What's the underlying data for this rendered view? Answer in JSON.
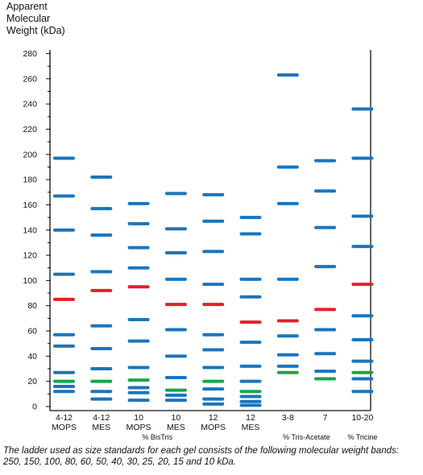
{
  "chart_data": {
    "type": "gel-ladder",
    "title_lines": [
      "Apparent",
      "Molecular",
      "Weight (kDa)"
    ],
    "ylim": [
      0,
      280
    ],
    "yticks": [
      0,
      20,
      40,
      60,
      80,
      100,
      120,
      140,
      160,
      180,
      200,
      220,
      240,
      260,
      280
    ],
    "lanes": [
      {
        "label1": "4-12",
        "label2": "MOPS",
        "blue": [
          197,
          167,
          140,
          105,
          57,
          48,
          27,
          16,
          12
        ],
        "red": [
          85
        ],
        "green": [
          20
        ]
      },
      {
        "label1": "4-12",
        "label2": "MES",
        "blue": [
          182,
          157,
          136,
          107,
          64,
          46,
          30,
          12,
          6
        ],
        "red": [
          92
        ],
        "green": [
          20
        ]
      },
      {
        "label1": "10",
        "label2": "MOPS",
        "blue": [
          161,
          145,
          126,
          110,
          69,
          52,
          31,
          15,
          11,
          5
        ],
        "red": [
          95
        ],
        "green": [
          21
        ]
      },
      {
        "label1": "10",
        "label2": "MES",
        "blue": [
          169,
          141,
          122,
          101,
          61,
          40,
          23,
          9,
          5
        ],
        "red": [
          81
        ],
        "green": [
          13
        ]
      },
      {
        "label1": "12",
        "label2": "MOPS",
        "blue": [
          168,
          147,
          123,
          97,
          57,
          45,
          31,
          14,
          6,
          2
        ],
        "red": [
          81
        ],
        "green": [
          20
        ]
      },
      {
        "label1": "12",
        "label2": "MES",
        "blue": [
          150,
          137,
          101,
          87,
          51,
          32,
          20,
          8,
          4,
          1
        ],
        "red": [
          67
        ],
        "green": [
          12
        ]
      },
      {
        "label1": "3-8",
        "label2": "",
        "blue": [
          263,
          190,
          161,
          101,
          56,
          41,
          32
        ],
        "red": [
          68
        ],
        "green": [
          27
        ]
      },
      {
        "label1": "7",
        "label2": "",
        "blue": [
          195,
          171,
          142,
          111,
          61,
          42,
          28
        ],
        "red": [
          77
        ],
        "green": [
          22
        ]
      },
      {
        "label1": "10-20",
        "label2": "",
        "blue": [
          236,
          197,
          151,
          127,
          72,
          53,
          36,
          22,
          12
        ],
        "red": [
          97
        ],
        "green": [
          27
        ]
      }
    ],
    "groups": [
      {
        "name": "% BisTris",
        "first_lane": 0,
        "last_lane": 5
      },
      {
        "name": "% Tris-Acetate",
        "first_lane": 6,
        "last_lane": 7
      },
      {
        "name": "% Tricine",
        "first_lane": 8,
        "last_lane": 8
      }
    ],
    "colors": {
      "blue": "#1b75bc",
      "red": "#e3202a",
      "green": "#1aa548",
      "axis": "#111111"
    }
  },
  "caption": "The ladder used as size standards for each gel consists of the following molecular weight bands: 250, 150, 100, 80, 60, 50, 40, 30, 25, 20, 15 and 10 kDa."
}
